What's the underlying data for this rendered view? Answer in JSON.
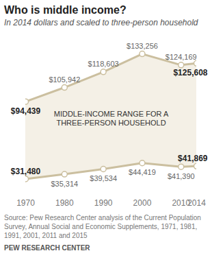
{
  "chart_data": {
    "type": "area",
    "title": "Who is middle income?",
    "subtitle": "In 2014 dollars and scaled to three-person household",
    "annotation": [
      "MIDDLE-INCOME RANGE FOR A",
      "THREE-PERSON HOUSEHOLD"
    ],
    "x": [
      1970,
      1980,
      1990,
      2000,
      2010,
      2014
    ],
    "xlim": [
      1970,
      2014
    ],
    "xticks": [
      1970,
      1980,
      1990,
      2000,
      2010,
      2014
    ],
    "ylim": [
      20000,
      140000
    ],
    "tick_labels": "x",
    "color": "#f4f0e6",
    "marker": "circle",
    "data_labels": true,
    "series": [
      {
        "color": "#cbbf9f",
        "values": [
          94439,
          105942,
          118603,
          133256,
          124169,
          125608
        ],
        "value_labels": [
          "$94,439",
          "$105,942",
          "$118,603",
          "$133,256",
          "$124,169",
          "$125,608"
        ]
      },
      {
        "color": "#cbbf9f",
        "values": [
          31480,
          35314,
          39534,
          44419,
          41390,
          41869
        ],
        "value_labels": [
          "$31,480",
          "$35,314",
          "$39,534",
          "$44,419",
          "$41,390",
          "$41,869"
        ]
      }
    ],
    "source": "Source: Pew Research Center analysis of the Current Population Survey, Annual Social and Economic Supplements, 1971, 1981, 1991, 2001, 2011 and 2015",
    "footer": "PEW RESEARCH CENTER"
  }
}
